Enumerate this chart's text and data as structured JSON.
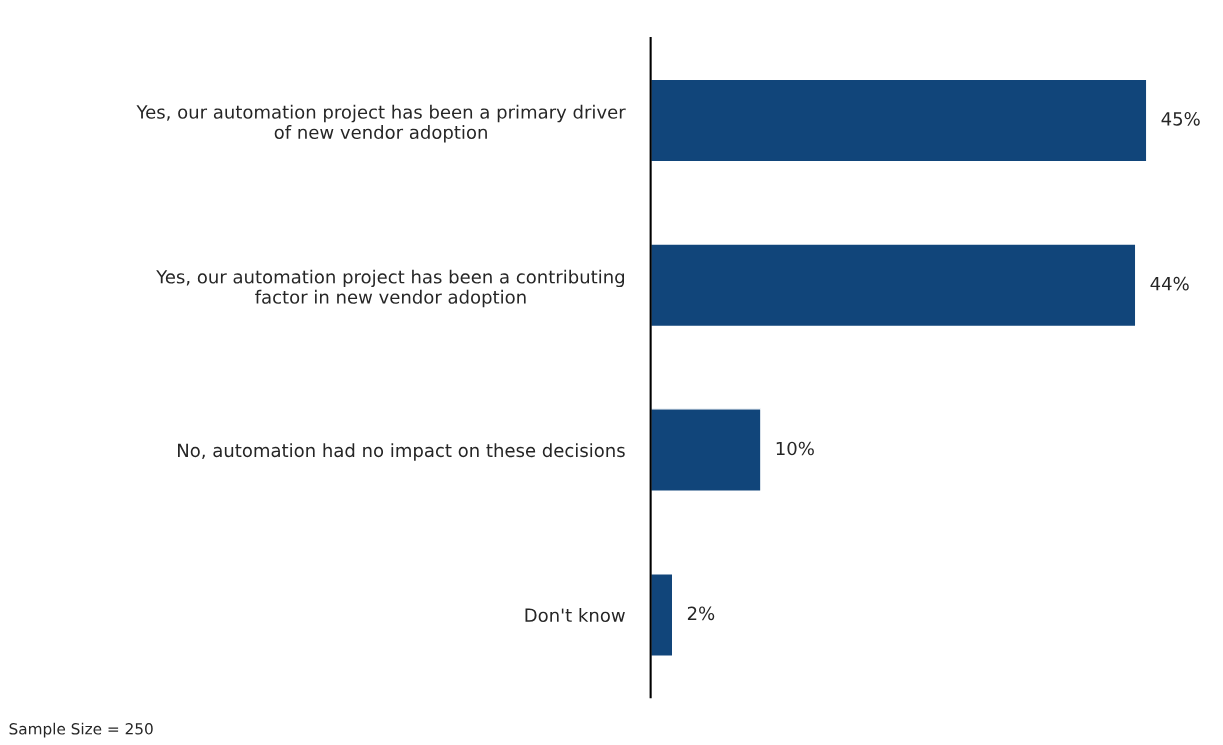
{
  "chart_data": {
    "type": "bar",
    "orientation": "horizontal",
    "categories": [
      "Yes, our automation project has been a primary driver\nof new vendor adoption",
      "Yes, our automation project has been a contributing\nfactor in new vendor adoption",
      "No, automation had no impact on these decisions",
      "Don't know"
    ],
    "values": [
      45,
      44,
      10,
      2
    ],
    "value_labels": [
      "45%",
      "44%",
      "10%",
      "2%"
    ],
    "color": "#11457a",
    "annotations": [
      "Sample Size = 250"
    ]
  }
}
